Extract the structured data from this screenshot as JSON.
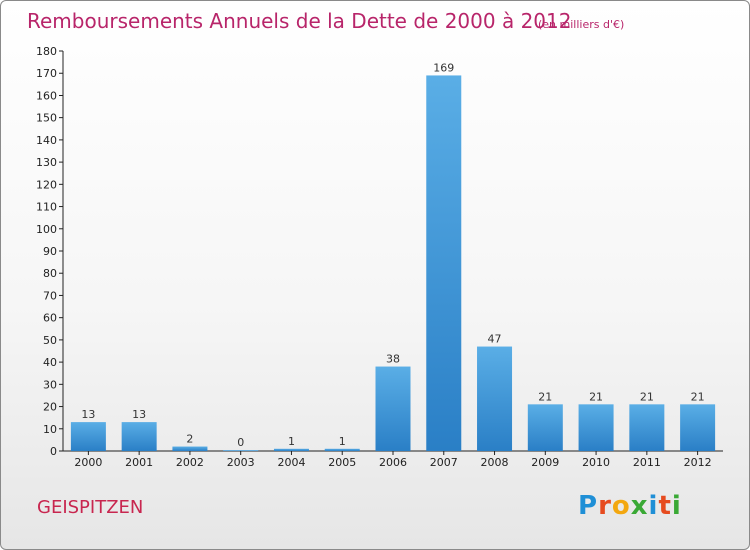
{
  "title": "Remboursements Annuels de la Dette de 2000 à 2012",
  "unit_note": "(en milliers d'€)",
  "commune": "GEISPITZEN",
  "logo": {
    "text": "Proxiti",
    "colors": [
      "#1f8fd6",
      "#e64b1f",
      "#f3a70f",
      "#3aa935",
      "#1f8fd6",
      "#e64b1f",
      "#3aa935"
    ]
  },
  "colors": {
    "title": "#b8256a",
    "bar_light": "#5aaee6",
    "bar_dark": "#2a7fc6"
  },
  "chart_data": {
    "type": "bar",
    "categories": [
      "2000",
      "2001",
      "2002",
      "2003",
      "2004",
      "2005",
      "2006",
      "2007",
      "2008",
      "2009",
      "2010",
      "2011",
      "2012"
    ],
    "values": [
      13,
      13,
      2,
      0,
      1,
      1,
      38,
      169,
      47,
      21,
      21,
      21,
      21
    ],
    "data_labels": [
      "13",
      "13",
      "2",
      "0",
      "1",
      "1",
      "38",
      "169",
      "47",
      "21",
      "21",
      "21",
      "21"
    ],
    "ylim": [
      0,
      180
    ],
    "yticks": [
      0,
      10,
      20,
      30,
      40,
      50,
      60,
      70,
      80,
      90,
      100,
      110,
      120,
      130,
      140,
      150,
      160,
      170,
      180
    ],
    "grid": false,
    "legend": "none"
  }
}
